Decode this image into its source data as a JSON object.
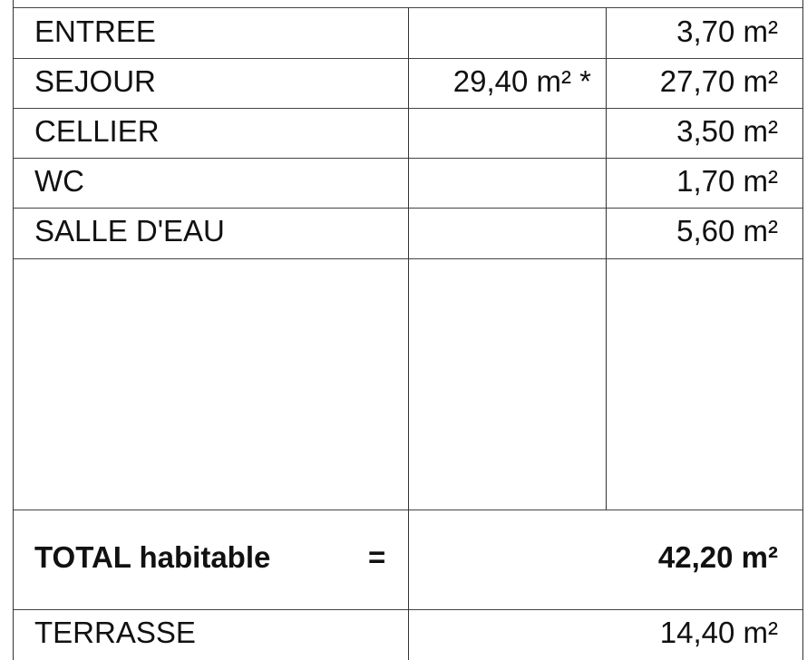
{
  "rows": [
    {
      "label": "ENTREE",
      "area_alt": "",
      "area": "3,70 m²"
    },
    {
      "label": "SEJOUR",
      "area_alt": "29,40 m² *",
      "area": "27,70 m²"
    },
    {
      "label": "CELLIER",
      "area_alt": "",
      "area": "3,50 m²"
    },
    {
      "label": "WC",
      "area_alt": "",
      "area": "1,70 m²"
    },
    {
      "label": "SALLE D'EAU",
      "area_alt": "",
      "area": "5,60 m²"
    }
  ],
  "total": {
    "label": "TOTAL habitable",
    "equals": "=",
    "value": "42,20 m²"
  },
  "extra": {
    "label": "TERRASSE",
    "value": "14,40 m²"
  }
}
